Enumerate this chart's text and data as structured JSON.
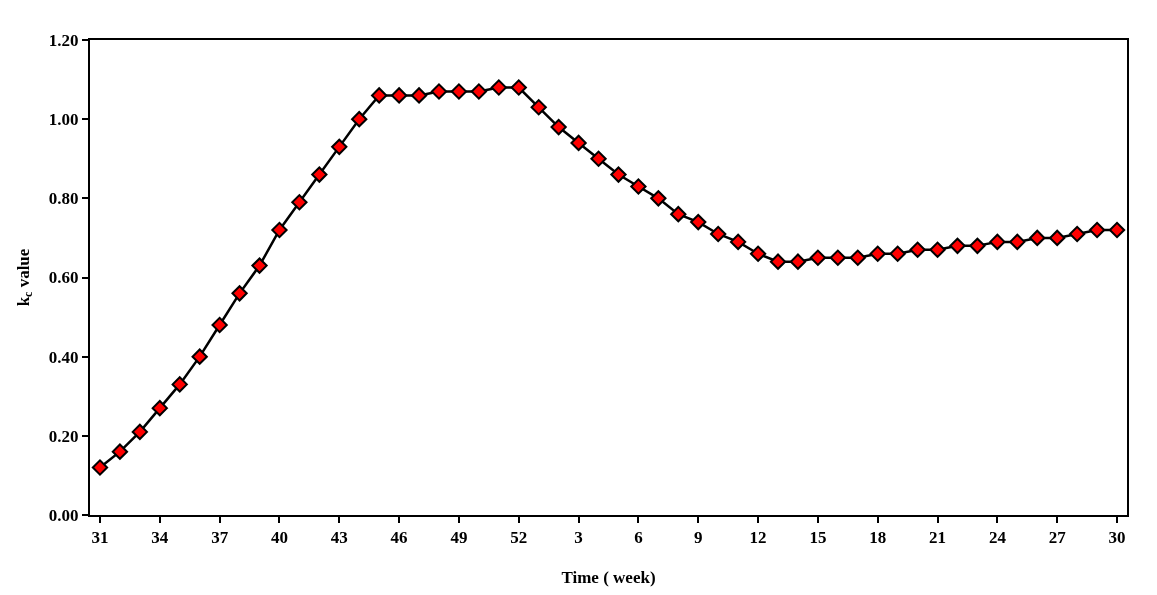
{
  "chart_data": {
    "type": "line",
    "xlabel": "Time ( week)",
    "ylabel": "k$_{c}$ value",
    "categories": [
      "31",
      null,
      null,
      "34",
      null,
      null,
      "37",
      null,
      null,
      "40",
      null,
      null,
      "43",
      null,
      null,
      "46",
      null,
      null,
      "49",
      null,
      null,
      "52",
      null,
      null,
      "3",
      null,
      null,
      "6",
      null,
      null,
      "9",
      null,
      null,
      "12",
      null,
      null,
      "15",
      null,
      null,
      "18",
      null,
      null,
      "21",
      null,
      null,
      "24",
      null,
      null,
      "27",
      null,
      null,
      "30"
    ],
    "series": [
      {
        "color": "#ff0000",
        "values": [
          0.12,
          0.16,
          0.21,
          0.27,
          0.33,
          0.4,
          0.48,
          0.56,
          0.63,
          0.72,
          0.79,
          0.86,
          0.93,
          1.0,
          1.06,
          1.06,
          1.06,
          1.07,
          1.07,
          1.07,
          1.08,
          1.08,
          1.03,
          0.98,
          0.94,
          0.9,
          0.86,
          0.83,
          0.8,
          0.76,
          0.74,
          0.71,
          0.69,
          0.66,
          0.64,
          0.64,
          0.65,
          0.65,
          0.65,
          0.66,
          0.66,
          0.67,
          0.67,
          0.68,
          0.68,
          0.69,
          0.69,
          0.7,
          0.7,
          0.71,
          0.72,
          0.72
        ]
      }
    ],
    "ylim": [
      0,
      1.2
    ],
    "yticks": [
      {
        "value": 0,
        "label": "0.00"
      },
      {
        "value": 0.2,
        "label": "0.20"
      },
      {
        "value": 0.4,
        "label": "0.40"
      },
      {
        "value": 0.6,
        "label": "0.60"
      },
      {
        "value": 0.8,
        "label": "0.80"
      },
      {
        "value": 1.0,
        "label": "1.00"
      },
      {
        "value": 1.2,
        "label": "1.20"
      }
    ],
    "marker": "diamond",
    "line_style": "solid"
  }
}
